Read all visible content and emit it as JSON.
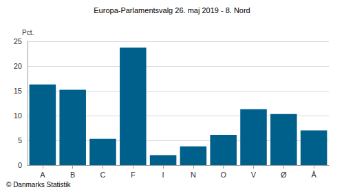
{
  "chart_data": {
    "type": "bar",
    "title": "Europa-Parlamentsvalg 26. maj 2019 - 8. Nord",
    "y_label": "Pct.",
    "source": "© Danmarks Statistik",
    "categories": [
      "A",
      "B",
      "C",
      "F",
      "I",
      "N",
      "O",
      "V",
      "Ø",
      "Å"
    ],
    "values": [
      16.3,
      15.2,
      5.3,
      23.7,
      2.0,
      3.8,
      6.1,
      11.3,
      10.3,
      7.0
    ],
    "color": "#00608c",
    "ylim": [
      0,
      25
    ],
    "yticks": [
      0,
      5,
      10,
      15,
      20,
      25
    ],
    "grid": true
  }
}
